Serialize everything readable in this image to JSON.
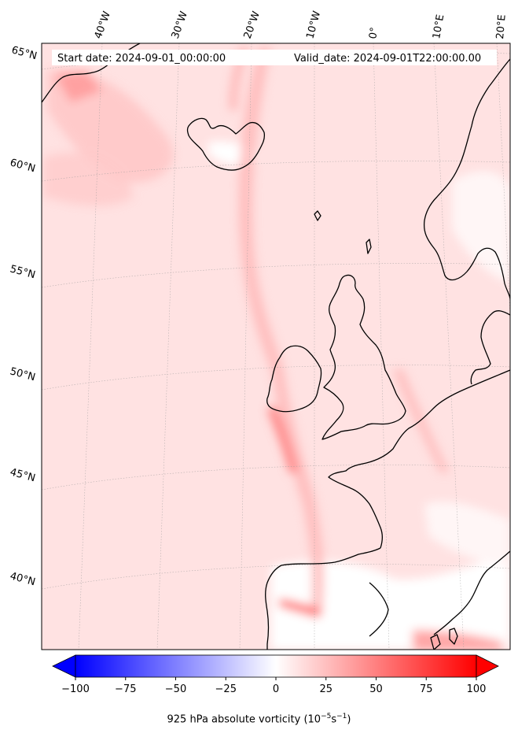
{
  "header": {
    "start_date": "Start date: 2024-09-01_00:00:00",
    "valid_date": "Valid_date: 2024-09-01T22:00:00.00"
  },
  "lon_labels": [
    "40°W",
    "30°W",
    "20°W",
    "10°W",
    "0°",
    "10°E",
    "20°E"
  ],
  "lat_labels": [
    "65°N",
    "60°N",
    "55°N",
    "50°N",
    "45°N",
    "40°N"
  ],
  "colorbar": {
    "min": -100,
    "max": 100,
    "ticks": [
      "−100",
      "−75",
      "−50",
      "−25",
      "0",
      "25",
      "50",
      "75",
      "100"
    ],
    "label_prefix": "925 hPa absolute vorticity (10",
    "label_exp1": "−5",
    "label_mid": "s",
    "label_exp2": "−1",
    "label_suffix": ")",
    "colors": {
      "negative": "#0000ff",
      "zero": "#ffffff",
      "positive": "#ff0000"
    }
  },
  "map": {
    "background_color": "#ffe4e4",
    "coastline_color": "#000000"
  }
}
